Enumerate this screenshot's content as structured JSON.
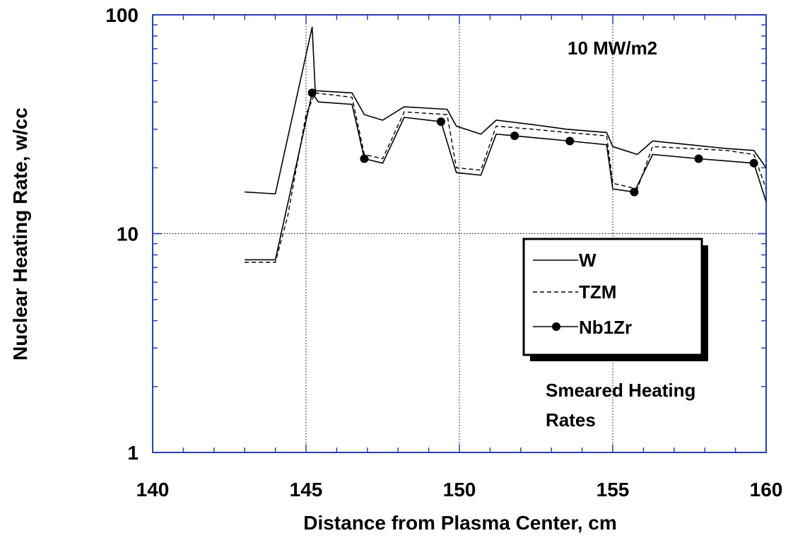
{
  "chart_data": {
    "type": "line",
    "xlabel": "Distance from Plasma Center, cm",
    "ylabel": "Nuclear Heating Rate, w/cc",
    "xlim": [
      140,
      160
    ],
    "ylim": [
      1,
      100
    ],
    "y_scale": "log",
    "x_ticks": [
      140,
      145,
      150,
      155,
      160
    ],
    "y_ticks": [
      1,
      10,
      100
    ],
    "x_tick_labels": [
      "140",
      "145",
      "150",
      "155",
      "160"
    ],
    "y_tick_labels": [
      "1",
      "10",
      "100"
    ],
    "grid": "dotted at x=145,150,155 and y=10",
    "legend_position": "center-right",
    "annotations": [
      "10 MW/m2",
      "Smeared Heating",
      "Rates"
    ],
    "series": [
      {
        "name": "W",
        "style": "solid",
        "x": [
          143.0,
          144.0,
          145.2,
          145.3,
          146.5,
          146.9,
          147.5,
          148.2,
          149.6,
          149.9,
          150.7,
          151.2,
          152.4,
          153.5,
          154.8,
          155.0,
          155.8,
          156.3,
          157.5,
          158.7,
          159.6,
          160.0
        ],
        "y": [
          15.5,
          15.2,
          88,
          45,
          44,
          35,
          33,
          38,
          37,
          31,
          28.5,
          33,
          31.5,
          30,
          29,
          25,
          23,
          26.5,
          25.5,
          24.5,
          24,
          20
        ]
      },
      {
        "name": "TZM",
        "style": "dashed",
        "x": [
          143.0,
          144.0,
          144.4,
          145.0,
          145.3,
          146.5,
          146.9,
          147.5,
          148.2,
          149.6,
          149.9,
          150.7,
          151.2,
          152.4,
          153.5,
          154.8,
          155.0,
          155.8,
          156.3,
          157.5,
          158.7,
          159.6,
          160.0
        ],
        "y": [
          7.4,
          7.4,
          12,
          35,
          44,
          42,
          23,
          22,
          36,
          35,
          20,
          19.5,
          31,
          30,
          29,
          28,
          17,
          16,
          25,
          24.5,
          24,
          23,
          16
        ]
      },
      {
        "name": "Nb1Zr",
        "style": "solid-with-circle-markers",
        "x": [
          143.0,
          144.0,
          145.2,
          145.4,
          146.5,
          146.9,
          147.5,
          148.2,
          149.4,
          149.9,
          150.7,
          151.2,
          151.8,
          153.6,
          154.8,
          155.0,
          155.7,
          156.3,
          157.8,
          159.6,
          160.0
        ],
        "y": [
          7.6,
          7.6,
          44,
          40,
          39,
          22,
          21,
          34,
          32.5,
          19,
          18.5,
          28.5,
          28,
          26.5,
          25.5,
          16,
          15.5,
          23,
          22,
          21,
          14
        ],
        "marker_x": [
          145.2,
          146.9,
          149.4,
          151.8,
          153.6,
          155.7,
          157.8,
          159.6
        ],
        "marker_y": [
          44,
          22,
          32.5,
          28,
          26.5,
          15.5,
          22,
          21
        ]
      }
    ]
  },
  "colors": {
    "axis": "#2a3fb4",
    "line": "#000000",
    "grid": "#000000",
    "background": "#ffffff"
  }
}
